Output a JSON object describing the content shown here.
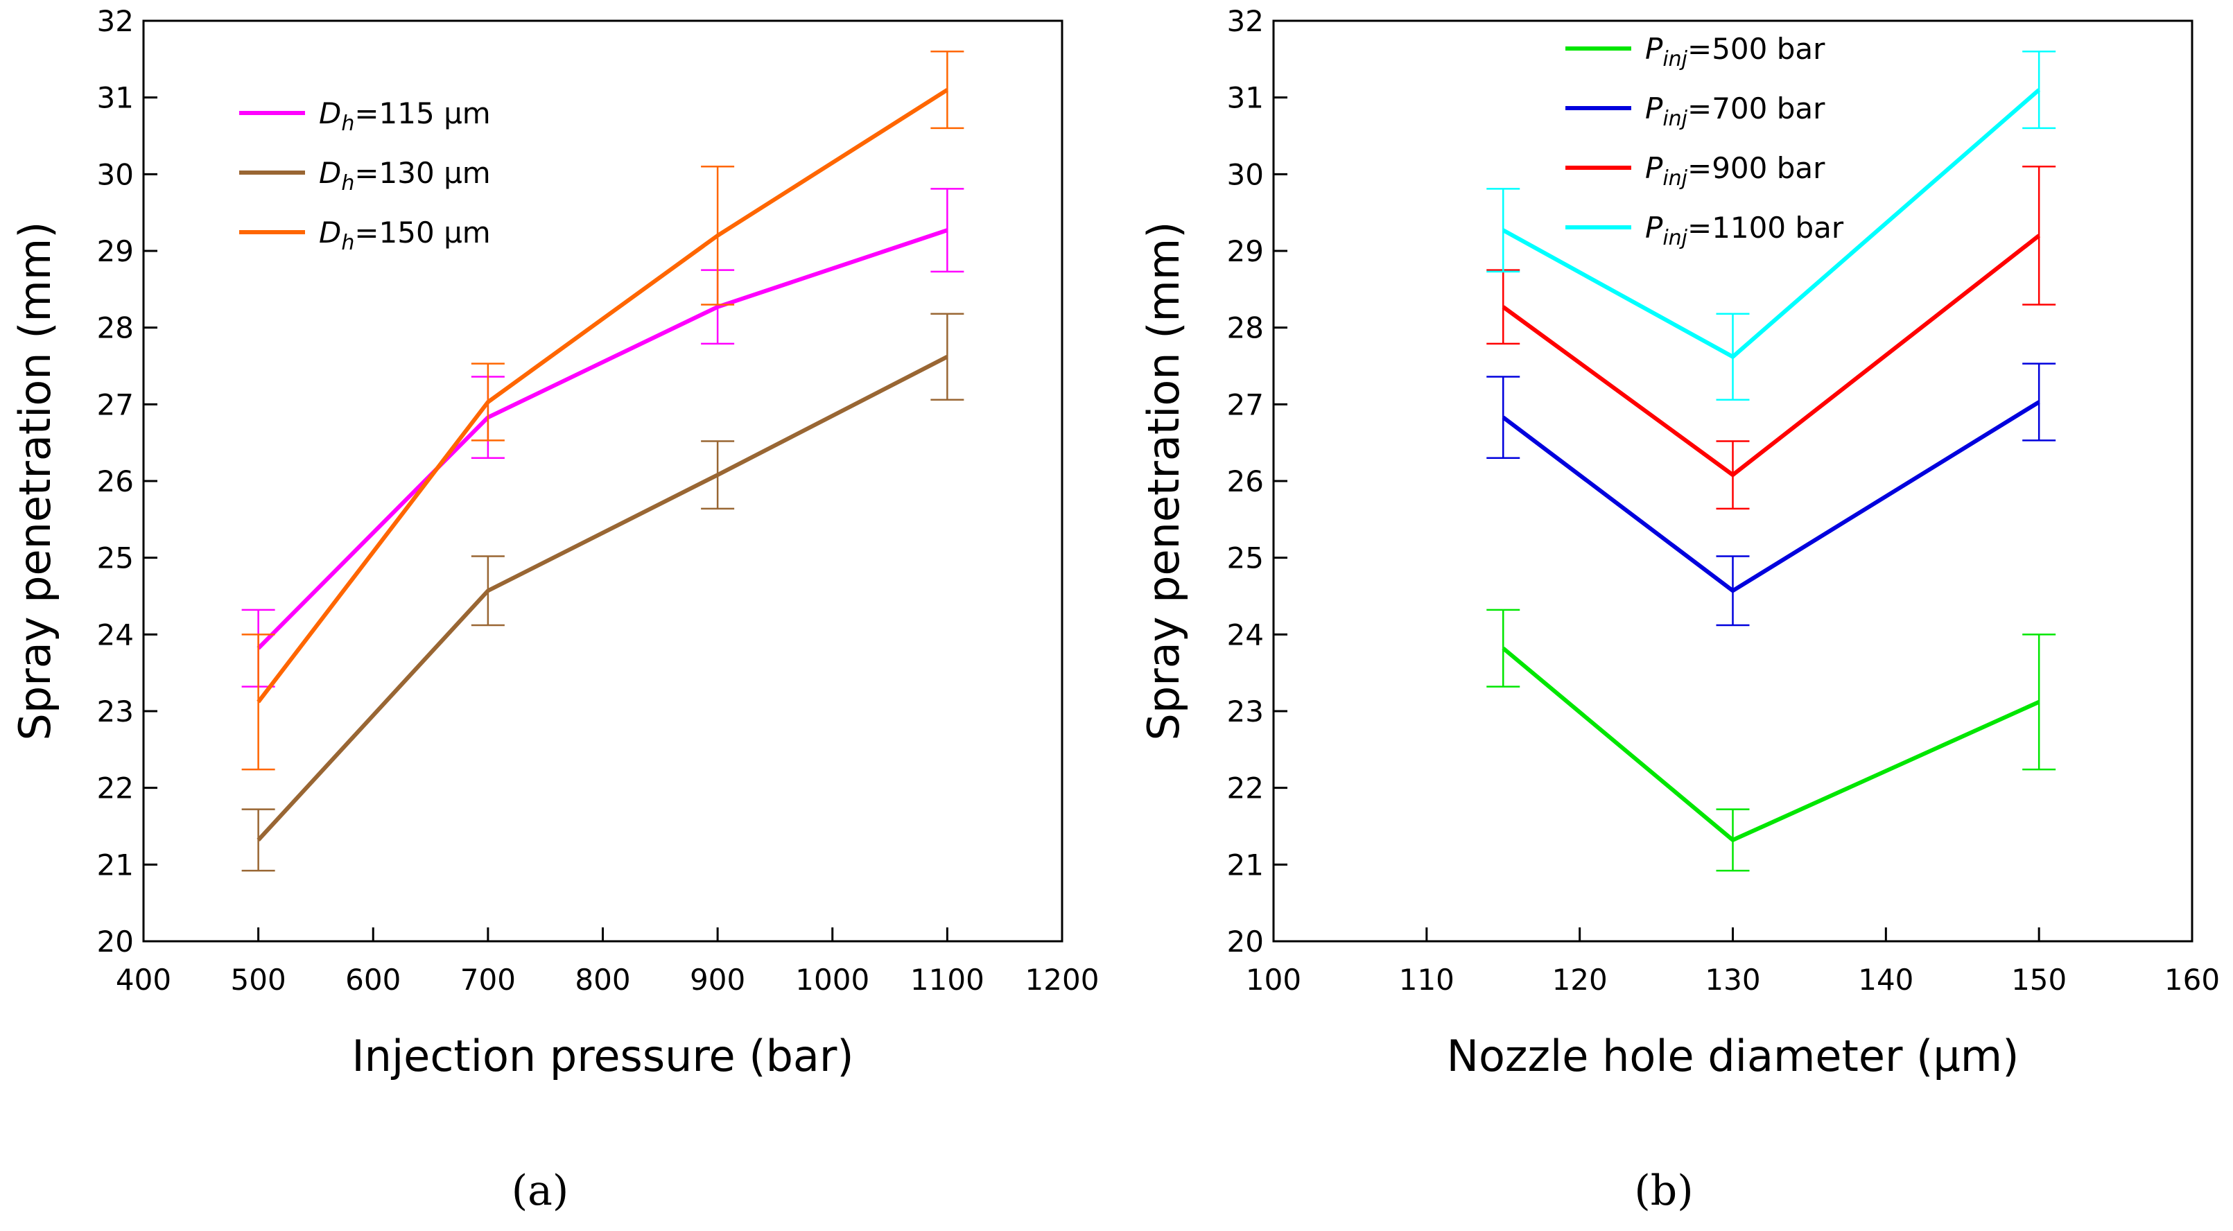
{
  "chart_data": [
    {
      "type": "line",
      "xlabel": "Injection pressure (bar)",
      "ylabel": "Spray penetration (mm)",
      "xlim": [
        400,
        1200
      ],
      "ylim": [
        20,
        32
      ],
      "xticks": [
        400,
        500,
        600,
        700,
        800,
        900,
        1000,
        1100,
        1200
      ],
      "yticks": [
        20,
        21,
        22,
        23,
        24,
        25,
        26,
        27,
        28,
        29,
        30,
        31,
        32
      ],
      "grid": false,
      "legend_position": "top-left",
      "caption": "(a)",
      "x": [
        500,
        700,
        900,
        1100
      ],
      "series": [
        {
          "name": "D_h=115 μm",
          "sym": "D",
          "sub": "h",
          "rest": "=115 μm",
          "color": "#ff00ff",
          "values": [
            23.82,
            26.83,
            28.27,
            29.27
          ],
          "err": [
            0.5,
            0.53,
            0.48,
            0.54
          ]
        },
        {
          "name": "D_h=130 μm",
          "sym": "D",
          "sub": "h",
          "rest": "=130 μm",
          "color": "#996633",
          "values": [
            21.32,
            24.57,
            26.08,
            27.62
          ],
          "err": [
            0.4,
            0.45,
            0.44,
            0.56
          ]
        },
        {
          "name": "D_h=150 μm",
          "sym": "D",
          "sub": "h",
          "rest": "=150 μm",
          "color": "#ff6600",
          "values": [
            23.12,
            27.03,
            29.2,
            31.1
          ],
          "err": [
            0.88,
            0.5,
            0.9,
            0.5
          ]
        }
      ]
    },
    {
      "type": "line",
      "xlabel": "Nozzle hole diameter (μm)",
      "ylabel": "Spray penetration (mm)",
      "xlim": [
        100,
        160
      ],
      "ylim": [
        20,
        32
      ],
      "xticks": [
        100,
        110,
        120,
        130,
        140,
        150,
        160
      ],
      "yticks": [
        20,
        21,
        22,
        23,
        24,
        25,
        26,
        27,
        28,
        29,
        30,
        31,
        32
      ],
      "grid": false,
      "legend_position": "top-center",
      "caption": "(b)",
      "x": [
        115,
        130,
        150
      ],
      "series": [
        {
          "name": "P_inj=500 bar",
          "sym": "P",
          "sub": "inj",
          "rest": "=500 bar",
          "color": "#00e600",
          "values": [
            23.82,
            21.32,
            23.12
          ],
          "err": [
            0.5,
            0.4,
            0.88
          ]
        },
        {
          "name": "P_inj=700 bar",
          "sym": "P",
          "sub": "inj",
          "rest": "=700 bar",
          "color": "#0000dd",
          "values": [
            26.83,
            24.57,
            27.03
          ],
          "err": [
            0.53,
            0.45,
            0.5
          ]
        },
        {
          "name": "P_inj=900 bar",
          "sym": "P",
          "sub": "inj",
          "rest": "=900 bar",
          "color": "#ff0000",
          "values": [
            28.27,
            26.08,
            29.2
          ],
          "err": [
            0.48,
            0.44,
            0.9
          ]
        },
        {
          "name": "P_inj=1100 bar",
          "sym": "P",
          "sub": "inj",
          "rest": "=1100 bar",
          "color": "#00ffff",
          "values": [
            29.27,
            27.62,
            31.1
          ],
          "err": [
            0.54,
            0.56,
            0.5
          ]
        }
      ]
    }
  ]
}
